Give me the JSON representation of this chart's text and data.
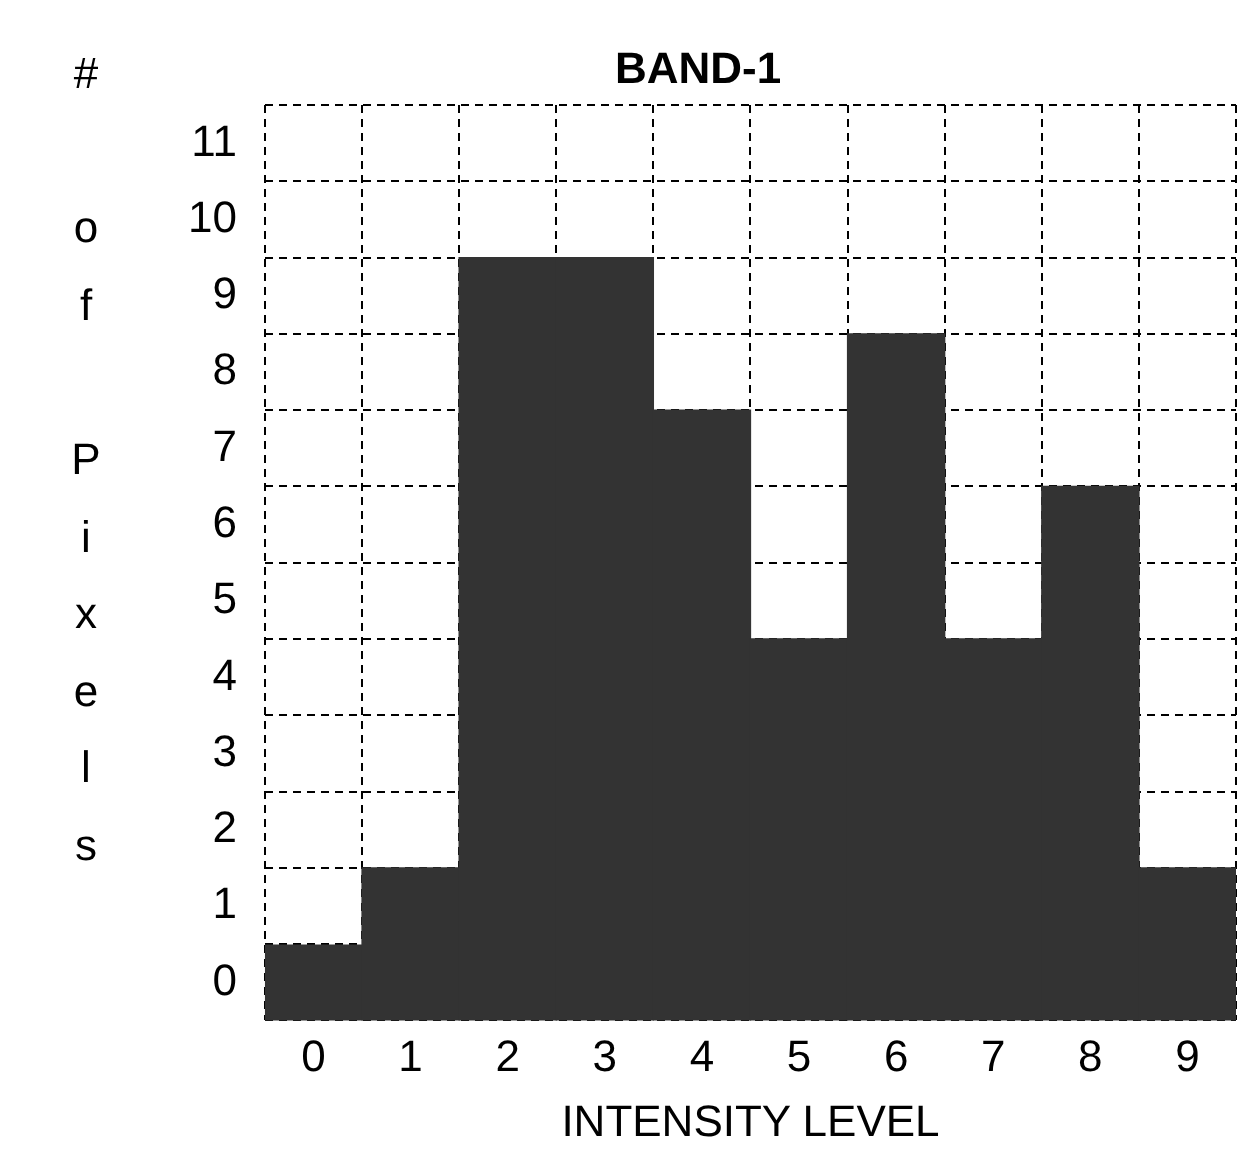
{
  "chart_data": {
    "type": "bar",
    "title": "BAND-1",
    "xlabel": "INTENSITY LEVEL",
    "ylabel": "# of Pixels",
    "categories": [
      "0",
      "1",
      "2",
      "3",
      "4",
      "5",
      "6",
      "7",
      "8",
      "9"
    ],
    "values": [
      1,
      2,
      10,
      10,
      8,
      5,
      9,
      5,
      7,
      2
    ],
    "base": [
      -1,
      -1,
      -1,
      -1,
      -1,
      -1,
      -1,
      -1,
      -1,
      -1
    ],
    "color": "#333333",
    "ylim": [
      -1,
      11
    ],
    "yticks": [
      {
        "value": -1,
        "label": null
      },
      0,
      1,
      2,
      3,
      4,
      5,
      6,
      7,
      8,
      9,
      10,
      11
    ],
    "grid": true,
    "legend": false
  }
}
